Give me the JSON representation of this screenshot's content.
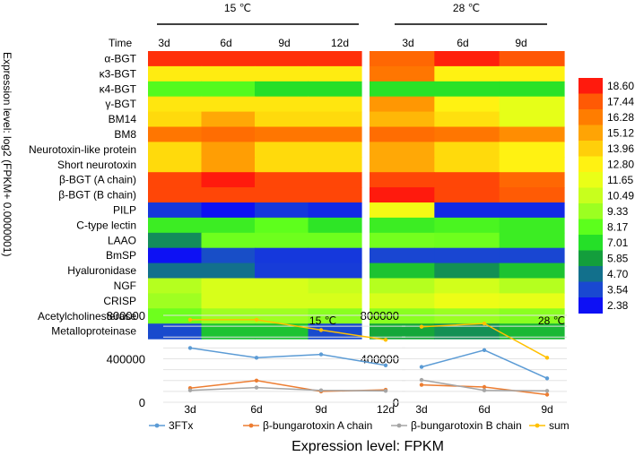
{
  "chart_data": [
    {
      "type": "heatmap",
      "title": "",
      "ylabel": "Expression level: log2 (FPKM+ 0.0000001)",
      "column_header": "Time",
      "groups": [
        {
          "name": "15 ℃",
          "columns": [
            "3d",
            "6d",
            "9d",
            "12d"
          ]
        },
        {
          "name": "28 ℃",
          "columns": [
            "3d",
            "6d",
            "9d"
          ]
        }
      ],
      "rows": [
        "α-BGT",
        "κ3-BGT",
        "κ4-BGT",
        "γ-BGT",
        "BM14",
        "BM8",
        "Neurotoxin-like protein",
        "Short neurotoxin",
        "β-BGT (A chain)",
        "β-BGT (B chain)",
        "PILP",
        "C-type lectin",
        "LAAO",
        "BmSP",
        "Hyaluronidase",
        "NGF",
        "CRISP",
        "Acetylcholinesterase",
        "Metalloproteinase"
      ],
      "values": [
        [
          18.2,
          18.2,
          18.2,
          18.2,
          17.0,
          18.5,
          17.5
        ],
        [
          13.0,
          13.0,
          13.0,
          13.0,
          16.5,
          12.8,
          12.8
        ],
        [
          8.0,
          8.0,
          7.0,
          7.0,
          7.1,
          7.1,
          7.1
        ],
        [
          13.2,
          13.2,
          13.2,
          13.2,
          15.5,
          12.8,
          11.5
        ],
        [
          13.6,
          15.0,
          13.6,
          13.6,
          14.6,
          13.4,
          11.5
        ],
        [
          16.5,
          16.8,
          16.5,
          16.5,
          16.8,
          16.5,
          15.8
        ],
        [
          13.6,
          15.3,
          13.6,
          13.6,
          15.0,
          13.6,
          12.8
        ],
        [
          13.6,
          15.3,
          13.6,
          13.6,
          15.0,
          13.6,
          12.8
        ],
        [
          17.8,
          18.6,
          17.8,
          17.8,
          17.8,
          17.8,
          17.0
        ],
        [
          17.8,
          17.8,
          17.8,
          17.8,
          18.6,
          17.8,
          17.4
        ],
        [
          3.2,
          2.4,
          3.2,
          2.9,
          12.2,
          2.9,
          2.9
        ],
        [
          7.5,
          7.5,
          8.2,
          7.2,
          7.5,
          7.8,
          7.5
        ],
        [
          5.4,
          8.5,
          8.5,
          8.5,
          8.6,
          8.5,
          7.5
        ],
        [
          2.4,
          3.7,
          3.2,
          3.2,
          3.5,
          3.5,
          3.5
        ],
        [
          4.7,
          4.7,
          3.3,
          3.3,
          6.5,
          5.5,
          6.5
        ],
        [
          10.0,
          11.0,
          11.0,
          10.5,
          10.0,
          10.8,
          10.0
        ],
        [
          9.4,
          11.0,
          11.0,
          11.0,
          11.0,
          11.8,
          11.5
        ],
        [
          8.5,
          9.4,
          9.4,
          9.0,
          9.0,
          9.3,
          9.0
        ],
        [
          3.6,
          6.5,
          6.5,
          3.6,
          6.0,
          5.5,
          6.3
        ]
      ],
      "colorbar": {
        "ticks": [
          "18.60",
          "17.44",
          "16.28",
          "15.12",
          "13.96",
          "12.80",
          "11.65",
          "10.49",
          "9.33",
          "8.17",
          "7.01",
          "5.85",
          "4.70",
          "3.54",
          "2.38"
        ],
        "colors": [
          "#ff1a0d",
          "#ff5a05",
          "#ff7d00",
          "#ffa405",
          "#ffcf0a",
          "#fff212",
          "#eaff17",
          "#c8ff1d",
          "#9cff21",
          "#5cff1c",
          "#25e028",
          "#139e3c",
          "#12708c",
          "#1948d1",
          "#0d10f5"
        ]
      }
    },
    {
      "type": "line",
      "panel": "15 ℃",
      "categories": [
        "3d",
        "6d",
        "9d",
        "12d"
      ],
      "ylim": [
        0,
        800000
      ],
      "yticks": [
        "800000",
        "400000",
        "0"
      ],
      "series": [
        {
          "name": "3FTx",
          "color": "#5b9bd5",
          "values": [
            500000,
            410000,
            440000,
            340000
          ]
        },
        {
          "name": "β-bungarotoxin A chain",
          "color": "#ed7d31",
          "values": [
            130000,
            200000,
            100000,
            115000
          ]
        },
        {
          "name": "β-bungarotoxin B chain",
          "color": "#a5a5a5",
          "values": [
            110000,
            135000,
            110000,
            105000
          ]
        },
        {
          "name": "sum",
          "color": "#ffc000",
          "values": [
            760000,
            760000,
            665000,
            575000
          ]
        }
      ]
    },
    {
      "type": "line",
      "panel": "28 ℃",
      "categories": [
        "3d",
        "6d",
        "9d"
      ],
      "ylim": [
        0,
        800000
      ],
      "yticks": [
        "800000",
        "400000",
        "0"
      ],
      "series": [
        {
          "name": "3FTx",
          "color": "#5b9bd5",
          "values": [
            325000,
            480000,
            220000
          ]
        },
        {
          "name": "β-bungarotoxin A chain",
          "color": "#ed7d31",
          "values": [
            160000,
            140000,
            70000
          ]
        },
        {
          "name": "β-bungarotoxin B chain",
          "color": "#a5a5a5",
          "values": [
            205000,
            110000,
            105000
          ]
        },
        {
          "name": "sum",
          "color": "#ffc000",
          "values": [
            695000,
            725000,
            410000
          ]
        }
      ]
    }
  ],
  "legend": [
    "3FTx",
    "β-bungarotoxin A chain",
    "β-bungarotoxin B chain",
    "sum"
  ],
  "footer_label": "Expression level: FPKM"
}
